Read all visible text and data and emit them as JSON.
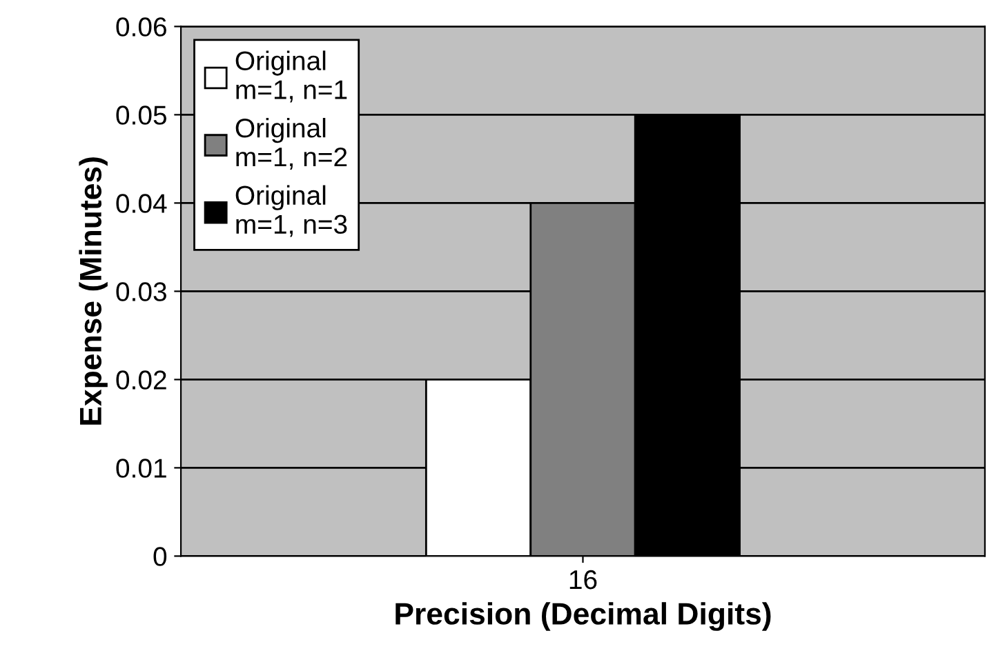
{
  "chart_data": {
    "type": "bar",
    "xlabel": "Precision (Decimal Digits)",
    "ylabel": "Expense (Minutes)",
    "categories": [
      "16"
    ],
    "series": [
      {
        "name": "Original\nm=1, n=1",
        "color": "#ffffff",
        "values": [
          0.02
        ]
      },
      {
        "name": "Original\nm=1, n=2",
        "color": "#808080",
        "values": [
          0.04
        ]
      },
      {
        "name": "Original\nm=1, n=3",
        "color": "#000000",
        "values": [
          0.05
        ]
      }
    ],
    "ylim": [
      0,
      0.06
    ],
    "yticks": [
      0,
      0.01,
      0.02,
      0.03,
      0.04,
      0.05,
      0.06
    ],
    "grid": "y",
    "legend": "top left"
  }
}
